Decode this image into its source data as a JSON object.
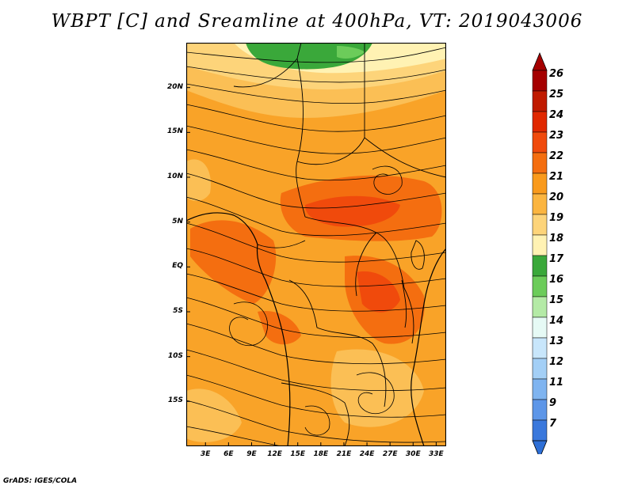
{
  "title": "WBPT [C] and Sreamline at 400hPa, VT: 2019043006",
  "credit": "GrADS: IGES/COLA",
  "map": {
    "variable": "Wet-bulb potential temperature",
    "units": "C",
    "level": "400hPa",
    "valid_time": "2019043006",
    "lat_ticks": [
      "20N",
      "15N",
      "10N",
      "5N",
      "EQ",
      "5S",
      "10S",
      "15S"
    ],
    "lon_ticks": [
      "3E",
      "6E",
      "9E",
      "12E",
      "15E",
      "18E",
      "21E",
      "24E",
      "27E",
      "30E",
      "33E"
    ],
    "lat_values": [
      20,
      15,
      10,
      5,
      0,
      -5,
      -10,
      -15
    ],
    "lon_values": [
      3,
      6,
      9,
      12,
      15,
      18,
      21,
      24,
      27,
      30,
      33
    ],
    "extent": {
      "lon_min": 0.5,
      "lon_max": 34.3,
      "lat_min": -20,
      "lat_max": 25
    }
  },
  "colorbar": {
    "labels": [
      "26",
      "25",
      "24",
      "23",
      "22",
      "21",
      "20",
      "19",
      "18",
      "17",
      "16",
      "15",
      "14",
      "13",
      "12",
      "11",
      "9",
      "7"
    ],
    "colors": [
      "#a50000",
      "#c01a00",
      "#e02800",
      "#f04a0c",
      "#f46e10",
      "#f99a1c",
      "#fbb540",
      "#fdd47a",
      "#fff2b3",
      "#3aa83a",
      "#6ccc5a",
      "#b4eaa6",
      "#e6faf5",
      "#c8e6fb",
      "#a3cff6",
      "#7fb4f0",
      "#5d96e8",
      "#3a78dc"
    ],
    "top_arrow_color": "#a50000",
    "bottom_arrow_color": "#2e6fd6"
  }
}
